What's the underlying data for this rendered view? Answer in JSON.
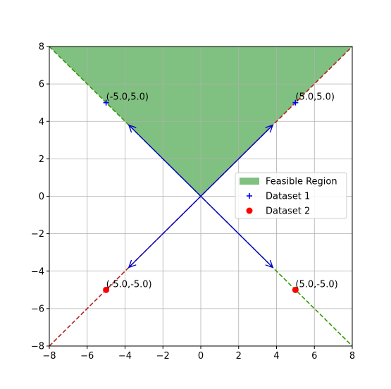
{
  "chart_data": {
    "type": "scatter",
    "title": "",
    "xlabel": "",
    "ylabel": "",
    "xlim": [
      -8,
      8
    ],
    "ylim": [
      -8,
      8
    ],
    "xticks": [
      -8,
      -6,
      -4,
      -2,
      0,
      2,
      4,
      6,
      8
    ],
    "yticks": [
      -8,
      -6,
      -4,
      -2,
      0,
      2,
      4,
      6,
      8
    ],
    "tick_labels_x": [
      "−8",
      "−6",
      "−4",
      "−2",
      "0",
      "2",
      "4",
      "6",
      "8"
    ],
    "tick_labels_y": [
      "−8",
      "−6",
      "−4",
      "−2",
      "0",
      "2",
      "4",
      "6",
      "8"
    ],
    "grid": true,
    "feasible_region": {
      "label": "Feasible Region",
      "polygon": [
        [
          0,
          0
        ],
        [
          8,
          8
        ],
        [
          -8,
          8
        ]
      ],
      "color": "#80c080"
    },
    "series": [
      {
        "name": "Dataset 1",
        "marker": "+",
        "color": "#0000ff",
        "points": [
          [
            -5.0,
            5.0
          ],
          [
            5.0,
            5.0
          ]
        ]
      },
      {
        "name": "Dataset 2",
        "marker": "o",
        "color": "#ff0000",
        "points": [
          [
            -5.0,
            -5.0
          ],
          [
            5.0,
            -5.0
          ]
        ]
      }
    ],
    "lines": [
      {
        "slope": 1,
        "color": "#b22222",
        "style": "dashed"
      },
      {
        "slope": -1,
        "color": "#339900",
        "style": "dashed"
      }
    ],
    "arrows": [
      {
        "from": [
          0,
          0
        ],
        "to": [
          3.8,
          3.8
        ]
      },
      {
        "from": [
          0,
          0
        ],
        "to": [
          -3.8,
          3.8
        ]
      },
      {
        "from": [
          0,
          0
        ],
        "to": [
          -3.8,
          -3.8
        ]
      },
      {
        "from": [
          0,
          0
        ],
        "to": [
          3.8,
          -3.8
        ]
      }
    ],
    "arrow_color": "#0000cc",
    "annotations": [
      {
        "text": "(-5.0,5.0)",
        "at": [
          -5.0,
          5.0
        ]
      },
      {
        "text": "(5.0,5.0)",
        "at": [
          5.0,
          5.0
        ]
      },
      {
        "text": "(-5.0,-5.0)",
        "at": [
          -5.0,
          -5.0
        ]
      },
      {
        "text": "(5.0,-5.0)",
        "at": [
          5.0,
          -5.0
        ]
      }
    ],
    "legend": {
      "position": "center-right",
      "entries": [
        "Feasible Region",
        "Dataset 1",
        "Dataset 2"
      ]
    }
  }
}
